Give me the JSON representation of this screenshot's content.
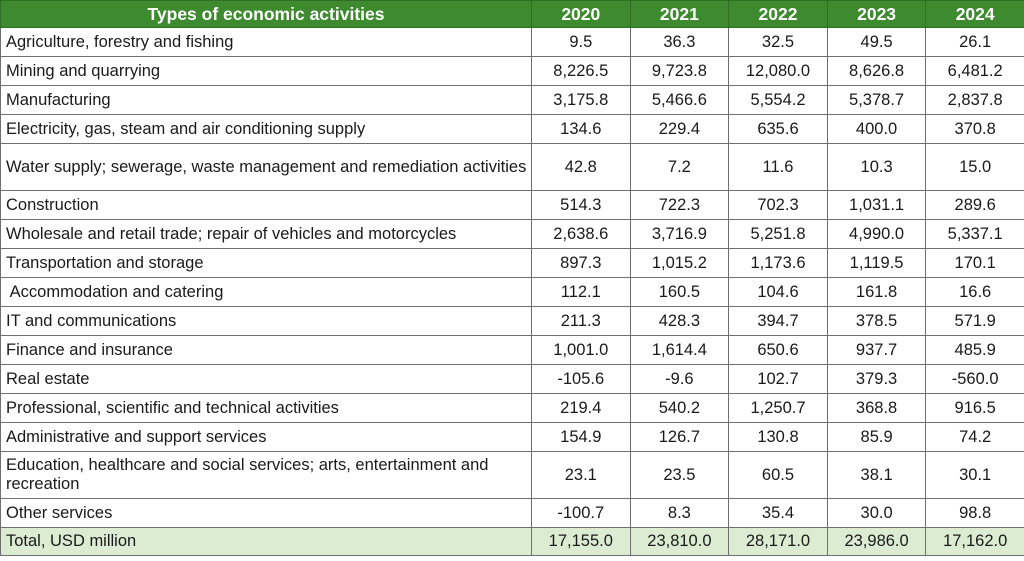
{
  "table": {
    "header": {
      "label": "Types of economic activities",
      "years": [
        "2020",
        "2021",
        "2022",
        "2023",
        "2024"
      ]
    },
    "rows": [
      {
        "label": "Agriculture, forestry and fishing",
        "values": [
          "9.5",
          "36.3",
          "32.5",
          "49.5",
          "26.1"
        ]
      },
      {
        "label": "Mining and quarrying",
        "values": [
          "8,226.5",
          "9,723.8",
          "12,080.0",
          "8,626.8",
          "6,481.2"
        ]
      },
      {
        "label": "Manufacturing",
        "values": [
          "3,175.8",
          "5,466.6",
          "5,554.2",
          "5,378.7",
          "2,837.8"
        ]
      },
      {
        "label": "Electricity, gas, steam and air conditioning supply",
        "values": [
          "134.6",
          "229.4",
          "635.6",
          "400.0",
          "370.8"
        ]
      },
      {
        "label": "Water supply; sewerage, waste management and remediation activities",
        "values": [
          "42.8",
          "7.2",
          "11.6",
          "10.3",
          "15.0"
        ]
      },
      {
        "label": "Construction",
        "values": [
          "514.3",
          "722.3",
          "702.3",
          "1,031.1",
          "289.6"
        ]
      },
      {
        "label": "Wholesale and retail trade; repair of vehicles and motorcycles",
        "values": [
          "2,638.6",
          "3,716.9",
          "5,251.8",
          "4,990.0",
          "5,337.1"
        ]
      },
      {
        "label": "Transportation and storage",
        "values": [
          "897.3",
          "1,015.2",
          "1,173.6",
          "1,119.5",
          "170.1"
        ]
      },
      {
        "label": " Accommodation and catering",
        "values": [
          "112.1",
          "160.5",
          "104.6",
          "161.8",
          "16.6"
        ]
      },
      {
        "label": "IT and communications",
        "values": [
          "211.3",
          "428.3",
          "394.7",
          "378.5",
          "571.9"
        ]
      },
      {
        "label": "Finance and insurance",
        "values": [
          "1,001.0",
          "1,614.4",
          "650.6",
          "937.7",
          "485.9"
        ]
      },
      {
        "label": "Real estate",
        "values": [
          "-105.6",
          "-9.6",
          "102.7",
          "379.3",
          "-560.0"
        ]
      },
      {
        "label": "Professional, scientific and technical activities",
        "values": [
          "219.4",
          "540.2",
          "1,250.7",
          "368.8",
          "916.5"
        ]
      },
      {
        "label": "Administrative and support services",
        "values": [
          "154.9",
          "126.7",
          "130.8",
          "85.9",
          "74.2"
        ]
      },
      {
        "label": "Education, healthcare and social services; arts, entertainment and recreation",
        "values": [
          "23.1",
          "23.5",
          "60.5",
          "38.1",
          "30.1"
        ]
      },
      {
        "label": "Other services",
        "values": [
          "-100.7",
          "8.3",
          "35.4",
          "30.0",
          "98.8"
        ]
      }
    ],
    "total": {
      "label": "Total, USD million",
      "values": [
        "17,155.0",
        "23,810.0",
        "28,171.0",
        "23,986.0",
        "17,162.0"
      ]
    }
  },
  "colors": {
    "header_bg": "#3e8a2f",
    "header_text": "#ffffff",
    "total_bg": "#dcecd2",
    "border": "#6f6f6f"
  }
}
